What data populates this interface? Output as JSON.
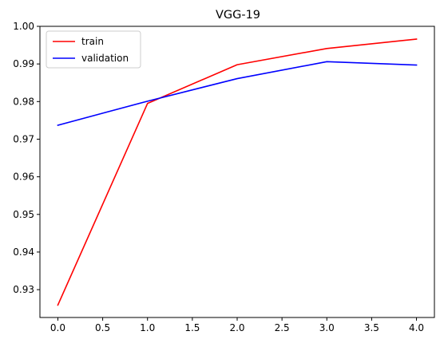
{
  "chart_data": {
    "type": "line",
    "title": "VGG-19",
    "xlabel": "",
    "ylabel": "",
    "xlim": [
      -0.2,
      4.2
    ],
    "ylim": [
      0.9226,
      1.0
    ],
    "x_ticks": [
      0.0,
      0.5,
      1.0,
      1.5,
      2.0,
      2.5,
      3.0,
      3.5,
      4.0
    ],
    "x_tick_labels": [
      "0.0",
      "0.5",
      "1.0",
      "1.5",
      "2.0",
      "2.5",
      "3.0",
      "3.5",
      "4.0"
    ],
    "y_ticks": [
      0.93,
      0.94,
      0.95,
      0.96,
      0.97,
      0.98,
      0.99,
      1.0
    ],
    "y_tick_labels": [
      "0.93",
      "0.94",
      "0.95",
      "0.96",
      "0.97",
      "0.98",
      "0.99",
      "1.00"
    ],
    "grid": false,
    "legend_position": "top-left",
    "x": [
      0,
      1,
      2,
      3,
      4
    ],
    "series": [
      {
        "name": "train",
        "color": "#ff0000",
        "values": [
          0.9259,
          0.9795,
          0.9898,
          0.9941,
          0.9966
        ]
      },
      {
        "name": "validation",
        "color": "#0000ff",
        "values": [
          0.9737,
          0.9801,
          0.9861,
          0.9906,
          0.9897
        ]
      }
    ]
  }
}
